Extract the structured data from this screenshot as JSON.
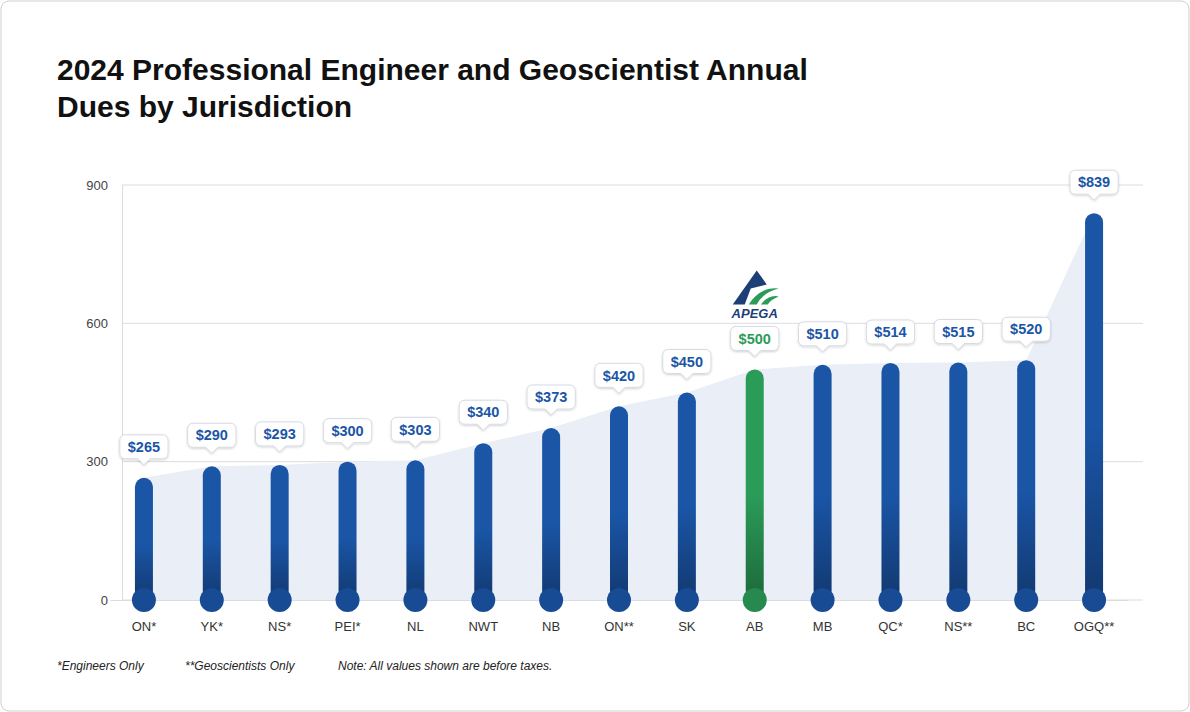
{
  "chart_data": {
    "type": "bar",
    "title": "2024 Professional Engineer and Geoscientist Annual Dues by Jurisdiction",
    "categories": [
      "ON*",
      "YK*",
      "NS*",
      "PEI*",
      "NL",
      "NWT",
      "NB",
      "ON**",
      "SK",
      "AB",
      "MB",
      "QC*",
      "NS**",
      "BC",
      "OGQ**"
    ],
    "values": [
      265,
      290,
      293,
      300,
      303,
      340,
      373,
      420,
      450,
      500,
      510,
      514,
      515,
      520,
      839
    ],
    "value_labels": [
      "$265",
      "$290",
      "$293",
      "$300",
      "$303",
      "$340",
      "$373",
      "$420",
      "$450",
      "$500",
      "$510",
      "$514",
      "$515",
      "$520",
      "$839"
    ],
    "colors": [
      "#1a55a6",
      "#1a55a6",
      "#1a55a6",
      "#1a55a6",
      "#1a55a6",
      "#1a55a6",
      "#1a55a6",
      "#1a55a6",
      "#1a55a6",
      "#2b9b58",
      "#1a55a6",
      "#1a55a6",
      "#1a55a6",
      "#1a55a6",
      "#1a55a6"
    ],
    "ylim": [
      0,
      900
    ],
    "yticks": [
      0,
      300,
      600,
      900
    ],
    "grid": true,
    "data_labels": true,
    "annotations": [
      {
        "text": "APEGA",
        "x": "AB"
      }
    ],
    "footnotes": [
      "*Engineers Only",
      "**Geoscientists Only",
      "Note: All values shown are before taxes."
    ]
  }
}
